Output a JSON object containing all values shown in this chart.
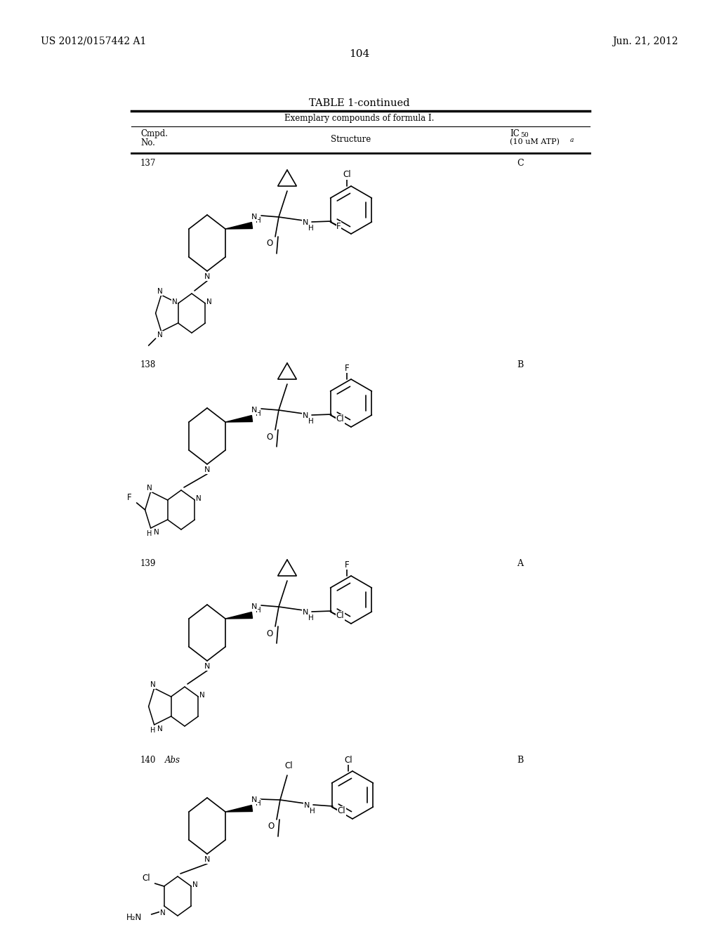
{
  "page_left": "US 2012/0157442 A1",
  "page_right": "Jun. 21, 2012",
  "page_number": "104",
  "table_title": "TABLE 1-continued",
  "table_subtitle": "Exemplary compounds of formula I.",
  "col1_header_line1": "Cmpd.",
  "col1_header_line2": "No.",
  "col2_header": "Structure",
  "col3_header_line1": "IC",
  "col3_header_sub": "50",
  "col3_header_line2": "(10 uM ATP)",
  "col3_header_super": "a",
  "compounds": [
    {
      "no": "137",
      "ic50": "C"
    },
    {
      "no": "138",
      "ic50": "B"
    },
    {
      "no": "139",
      "ic50": "A"
    },
    {
      "no": "140",
      "ic50": "B"
    }
  ],
  "compound_140_label": "Abs",
  "bg_color": "#ffffff",
  "text_color": "#000000"
}
